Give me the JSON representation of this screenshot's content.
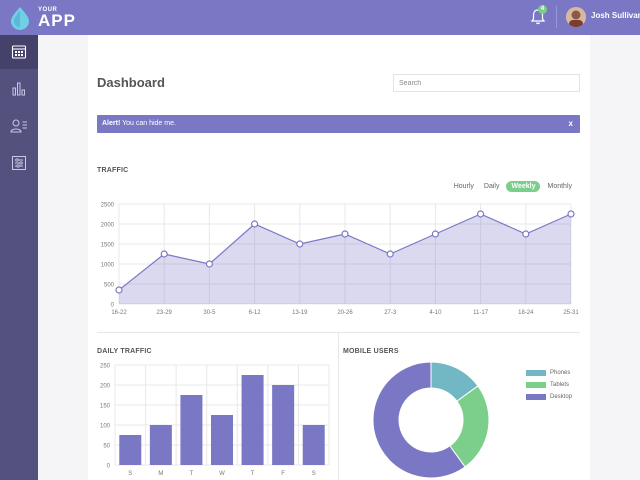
{
  "app": {
    "logo_small": "YOUR",
    "logo_big": "APP",
    "notification_count": "4",
    "user_name": "Josh Sullivan"
  },
  "sidebar": {
    "items": [
      {
        "icon": "calendar-icon",
        "active": true
      },
      {
        "icon": "bar-chart-icon",
        "active": false
      },
      {
        "icon": "users-icon",
        "active": false
      },
      {
        "icon": "settings-sliders-icon",
        "active": false
      }
    ]
  },
  "page": {
    "title": "Dashboard",
    "search_placeholder": "Search"
  },
  "alert": {
    "strong": "Alert!",
    "text": " You can hide me.",
    "close": "x"
  },
  "traffic": {
    "title": "TRAFFIC",
    "tabs": [
      "Hourly",
      "Daily",
      "Weekly",
      "Monthly"
    ],
    "active_tab": "Weekly"
  },
  "daily_traffic": {
    "title": "DAILY TRAFFIC"
  },
  "mobile_users": {
    "title": "MOBILE USERS"
  },
  "colors": {
    "primary": "#7a78c5",
    "sidebar": "#54517e",
    "green": "#7ccf8a",
    "teal": "#72b8c4"
  },
  "chart_data": [
    {
      "type": "area",
      "categories": [
        "16-22",
        "23-29",
        "30-5",
        "6-12",
        "13-19",
        "20-26",
        "27-3",
        "4-10",
        "11-17",
        "18-24",
        "25-31"
      ],
      "values": [
        350,
        1250,
        1000,
        2000,
        1500,
        1750,
        1250,
        1750,
        2250,
        1750,
        2250
      ],
      "yticks": [
        0,
        500,
        1000,
        1500,
        2000,
        2500
      ],
      "ylim": [
        0,
        2500
      ],
      "grid": true
    },
    {
      "type": "bar",
      "categories": [
        "S",
        "M",
        "T",
        "W",
        "T",
        "F",
        "S"
      ],
      "values": [
        75,
        100,
        175,
        125,
        225,
        200,
        100
      ],
      "yticks": [
        0,
        50,
        100,
        150,
        200,
        250
      ],
      "ylim": [
        0,
        250
      ],
      "grid": true
    },
    {
      "type": "pie",
      "labels": [
        "Phones",
        "Tablets",
        "Desktop"
      ],
      "values": [
        15,
        25,
        60
      ],
      "colors": [
        "#72b8c4",
        "#7ccf8a",
        "#7a78c5"
      ],
      "donut": true,
      "legend": "right"
    }
  ]
}
